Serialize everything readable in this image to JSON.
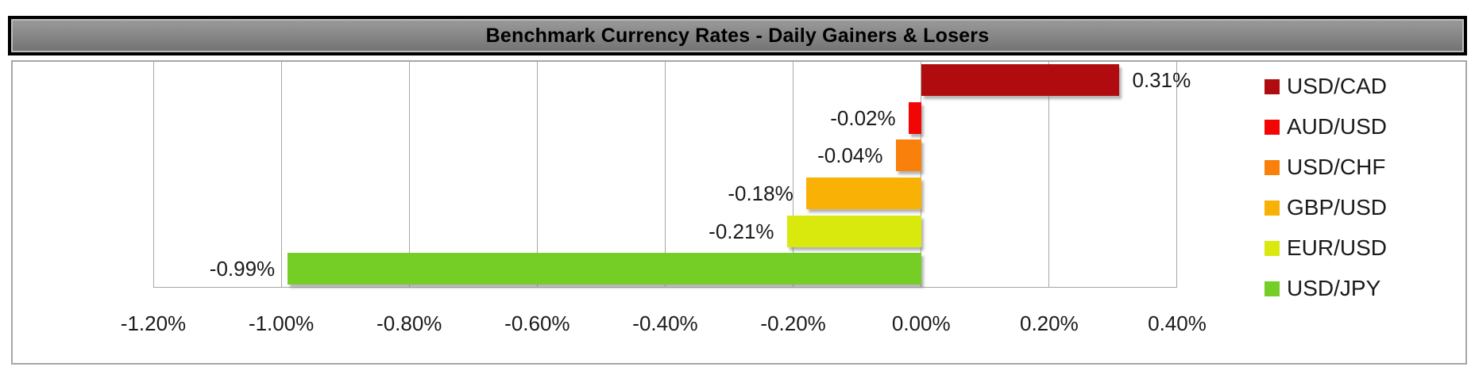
{
  "title": "Benchmark Currency Rates - Daily Gainers & Losers",
  "chart_data": {
    "type": "bar",
    "orientation": "horizontal",
    "title": "Benchmark Currency Rates - Daily Gainers & Losers",
    "categories": [
      "USD/CAD",
      "AUD/USD",
      "USD/CHF",
      "GBP/USD",
      "EUR/USD",
      "USD/JPY"
    ],
    "values": [
      0.31,
      -0.02,
      -0.04,
      -0.18,
      -0.21,
      -0.99
    ],
    "value_labels": [
      "0.31%",
      "-0.02%",
      "-0.04%",
      "-0.18%",
      "-0.21%",
      "-0.99%"
    ],
    "bar_colors": [
      "#b00c10",
      "#f10505",
      "#f8800b",
      "#fab105",
      "#d9e90e",
      "#74ce26"
    ],
    "xlim": [
      -1.2,
      0.4
    ],
    "x_ticks": [
      -1.2,
      -1.0,
      -0.8,
      -0.6,
      -0.4,
      -0.2,
      0.0,
      0.2,
      0.4
    ],
    "x_tick_labels": [
      "-1.20%",
      "-1.00%",
      "-0.80%",
      "-0.60%",
      "-0.40%",
      "-0.20%",
      "0.00%",
      "0.20%",
      "0.40%"
    ],
    "grid": "vertical-gridlines-on",
    "legend_position": "right",
    "legend": [
      {
        "label": "USD/CAD",
        "color": "#b00c10"
      },
      {
        "label": "AUD/USD",
        "color": "#f10505"
      },
      {
        "label": "USD/CHF",
        "color": "#f8800b"
      },
      {
        "label": "GBP/USD",
        "color": "#fab105"
      },
      {
        "label": "EUR/USD",
        "color": "#d9e90e"
      },
      {
        "label": "USD/JPY",
        "color": "#74ce26"
      }
    ]
  },
  "styles": {
    "title_bg": "#7f7f7f",
    "title_border": "#000000",
    "grid_color": "#a6a6a6",
    "frame_border": "#a6a6a6",
    "text_color": "#1a1a1a",
    "background": "#ffffff"
  }
}
